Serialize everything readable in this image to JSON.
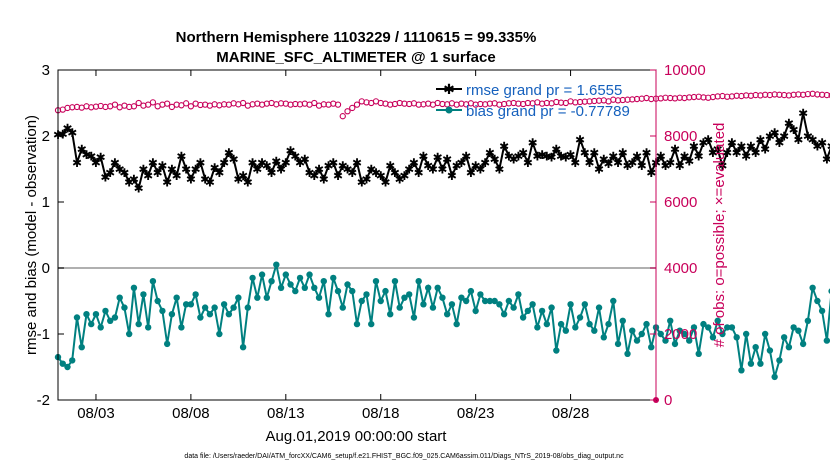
{
  "chart_data": {
    "type": "line",
    "title_line1": "Northern Hemisphere 1103229 / 1110615 = 99.335%",
    "title_line2": "MARINE_SFC_ALTIMETER @ 1 surface",
    "xlabel": "Aug.01,2019 00:00:00 start",
    "ylabel_left": "rmse and bias (model - observation)",
    "ylabel_right": "# of obs: o=possible; ×=evaluated",
    "footnote": "data file: /Users/raeder/DAI/ATM_forcXX/CAM6_setup/f.e21.FHIST_BGC.f09_025.CAM6assim.011/Diags_NTrS_2019-08/obs_diag_output.nc",
    "xlim": [
      1,
      32.5
    ],
    "ylim_left": [
      -2,
      3
    ],
    "ylim_right": [
      0,
      10000
    ],
    "x_ticks": [
      3,
      8,
      13,
      18,
      23,
      28
    ],
    "x_tick_labels": [
      "08/03",
      "08/08",
      "08/13",
      "08/18",
      "08/23",
      "08/28"
    ],
    "y_ticks_left": [
      "-2",
      "-1",
      "0",
      "1",
      "2",
      "3"
    ],
    "y_ticks_right": [
      "0",
      "2000",
      "4000",
      "6000",
      "8000",
      "10000"
    ],
    "zero_line": 0,
    "legend": [
      {
        "label": "rmse grand pr = 1.6555",
        "color": "#000000",
        "marker": "*"
      },
      {
        "label": "bias grand pr = -0.77789",
        "color": "#008080",
        "marker": "o"
      }
    ],
    "series": [
      {
        "name": "rmse grand pr = 1.6555",
        "axis": "left",
        "color": "#000000",
        "marker": "star",
        "x_start": 1,
        "x_step": 0.25,
        "values": [
          2.02,
          2.03,
          2.12,
          2.05,
          1.6,
          1.8,
          1.72,
          1.7,
          1.6,
          1.68,
          1.38,
          1.45,
          1.6,
          1.5,
          1.45,
          1.3,
          1.35,
          1.21,
          1.5,
          1.4,
          1.6,
          1.45,
          1.55,
          1.3,
          1.5,
          1.4,
          1.7,
          1.5,
          1.35,
          1.5,
          1.6,
          1.35,
          1.3,
          1.52,
          1.45,
          1.6,
          1.75,
          1.65,
          1.35,
          1.4,
          1.3,
          1.6,
          1.5,
          1.6,
          1.55,
          1.45,
          1.62,
          1.5,
          1.6,
          1.78,
          1.7,
          1.6,
          1.65,
          1.45,
          1.4,
          1.5,
          1.35,
          1.55,
          1.6,
          1.4,
          1.55,
          1.5,
          1.45,
          1.6,
          1.3,
          1.35,
          1.5,
          1.45,
          1.4,
          1.3,
          1.55,
          1.45,
          1.35,
          1.4,
          1.5,
          1.6,
          1.45,
          1.7,
          1.55,
          1.5,
          1.68,
          1.5,
          1.65,
          1.4,
          1.55,
          1.6,
          1.7,
          1.45,
          1.55,
          1.5,
          1.6,
          1.75,
          1.65,
          1.5,
          1.85,
          1.7,
          1.65,
          1.7,
          1.75,
          1.6,
          1.9,
          1.7,
          1.72,
          1.7,
          1.68,
          1.8,
          1.7,
          1.68,
          1.72,
          1.6,
          1.95,
          1.75,
          1.6,
          1.75,
          1.5,
          1.65,
          1.58,
          1.7,
          1.6,
          1.75,
          1.55,
          1.6,
          1.7,
          1.55,
          1.75,
          1.45,
          1.6,
          1.7,
          1.55,
          1.6,
          1.8,
          1.55,
          1.7,
          1.62,
          1.85,
          1.7,
          1.9,
          1.95,
          1.75,
          1.8,
          1.55,
          1.75,
          1.9,
          1.75,
          1.85,
          1.7,
          1.85,
          1.75,
          1.95,
          1.8,
          2.0,
          2.05,
          1.9,
          2.0,
          2.2,
          2.1,
          1.95,
          2.35,
          2.0,
          1.95,
          1.85,
          1.9,
          1.65,
          1.85,
          1.62,
          1.6
        ]
      },
      {
        "name": "bias grand pr = -0.77789",
        "axis": "left",
        "color": "#008080",
        "marker": "circle",
        "x_start": 1,
        "x_step": 0.25,
        "values": [
          -1.35,
          -1.45,
          -1.5,
          -1.4,
          -0.75,
          -1.2,
          -0.7,
          -0.85,
          -0.7,
          -0.9,
          -0.65,
          -0.8,
          -0.75,
          -0.45,
          -0.6,
          -1.0,
          -0.3,
          -0.85,
          -0.4,
          -0.9,
          -0.2,
          -0.5,
          -0.65,
          -1.15,
          -0.7,
          -0.45,
          -0.9,
          -0.55,
          -0.55,
          -0.4,
          -0.75,
          -0.6,
          -0.7,
          -0.6,
          -1.0,
          -0.55,
          -0.7,
          -0.6,
          -0.45,
          -1.2,
          -0.6,
          -0.15,
          -0.45,
          -0.1,
          -0.45,
          -0.2,
          0.05,
          -0.3,
          -0.1,
          -0.25,
          -0.35,
          -0.15,
          -0.3,
          -0.1,
          -0.3,
          -0.45,
          -0.2,
          -0.7,
          -0.15,
          -0.35,
          -0.6,
          -0.25,
          -0.35,
          -0.85,
          -0.5,
          -0.4,
          -0.85,
          -0.2,
          -0.5,
          -0.35,
          -0.7,
          -0.2,
          -0.6,
          -0.45,
          -0.4,
          -0.75,
          -0.2,
          -0.55,
          -0.3,
          -0.6,
          -0.3,
          -0.45,
          -0.7,
          -0.55,
          -0.85,
          -0.45,
          -0.5,
          -0.35,
          -0.65,
          -0.4,
          -0.5,
          -0.5,
          -0.5,
          -0.55,
          -0.7,
          -0.5,
          -0.6,
          -0.4,
          -0.75,
          -0.65,
          -0.55,
          -0.9,
          -0.65,
          -0.85,
          -0.6,
          -1.25,
          -0.85,
          -0.95,
          -0.55,
          -0.9,
          -0.75,
          -0.55,
          -0.85,
          -0.95,
          -0.6,
          -1.05,
          -0.85,
          -0.5,
          -1.15,
          -0.8,
          -1.3,
          -0.95,
          -1.1,
          -1.0,
          -0.85,
          -1.2,
          -0.9,
          -1.0,
          -1.1,
          -0.8,
          -1.15,
          -0.95,
          -1.0,
          -1.1,
          -0.9,
          -1.3,
          -0.85,
          -0.9,
          -1.05,
          -0.8,
          -1.0,
          -0.9,
          -0.9,
          -1.05,
          -1.55,
          -1.0,
          -1.45,
          -1.2,
          -1.45,
          -1.0,
          -1.25,
          -1.65,
          -1.4,
          -1.05,
          -1.2,
          -0.9,
          -0.95,
          -1.15,
          -0.8,
          -0.3,
          -0.5,
          -0.65,
          -1.1,
          -0.35
        ]
      },
      {
        "name": "obs possible",
        "axis": "right",
        "color": "#c8005a",
        "marker": "circle-open",
        "x_start": 1,
        "x_step": 0.25,
        "values": [
          8780,
          8800,
          8850,
          8870,
          8880,
          8860,
          8900,
          8870,
          8890,
          8910,
          8880,
          8900,
          8950,
          8870,
          8920,
          8880,
          8900,
          9000,
          8920,
          8950,
          9020,
          8900,
          8950,
          8980,
          8880,
          8950,
          8930,
          8990,
          8900,
          8980,
          8940,
          8950,
          8920,
          8960,
          8930,
          8960,
          8950,
          8990,
          8960,
          9000,
          8920,
          8960,
          8980,
          8950,
          8980,
          9000,
          8960,
          8990,
          8980,
          8950,
          8970,
          8960,
          8980,
          8950,
          9000,
          8920,
          8960,
          8950,
          8980,
          8950,
          8600,
          8750,
          8850,
          8950,
          9050,
          9020,
          9000,
          9050,
          9000,
          8980,
          8950,
          8970,
          9000,
          8980,
          8970,
          8990,
          8950,
          8960,
          8980,
          8950,
          9000,
          8970,
          8960,
          8990,
          8950,
          8980,
          8960,
          8990,
          8950,
          8970,
          8960,
          8980,
          8990,
          8950,
          8970,
          8990,
          9000,
          8980,
          8970,
          9000,
          8990,
          9020,
          8980,
          9000,
          8990,
          9030,
          9010,
          9000,
          9050,
          9020,
          9030,
          9040,
          9050,
          9060,
          9070,
          9080,
          9050,
          9100,
          9080,
          9090,
          9100,
          9110,
          9120,
          9130,
          9150,
          9120,
          9130,
          9140,
          9160,
          9150,
          9140,
          9160,
          9150,
          9170,
          9180,
          9190,
          9170,
          9160,
          9180,
          9200,
          9210,
          9190,
          9200,
          9220,
          9210,
          9230,
          9220,
          9240,
          9230,
          9250,
          9240,
          9260,
          9250,
          9240,
          9230,
          9250,
          9260,
          9250,
          9270,
          9280,
          9260,
          9250,
          9240,
          9230
        ]
      }
    ],
    "extra_marker": {
      "x": 32.5,
      "y_right": 0,
      "color": "#c8005a"
    }
  }
}
